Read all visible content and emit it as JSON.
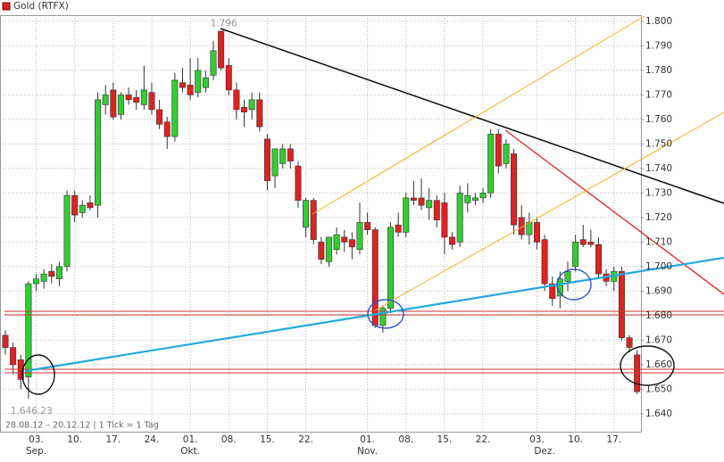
{
  "chart_data": {
    "type": "candlestick",
    "title": "Gold (RTFX)",
    "footer": "28.08.12 – 20.12.12 | 1 Tick = 1 Tag",
    "up_color": "#33cc33",
    "down_color": "#dd2222",
    "grid": true,
    "categories": [
      null,
      null,
      null,
      null,
      "03.",
      null,
      null,
      null,
      null,
      "10.",
      null,
      null,
      null,
      null,
      "17.",
      null,
      null,
      null,
      null,
      "24.",
      null,
      null,
      null,
      null,
      "01.",
      null,
      null,
      null,
      null,
      "08.",
      null,
      null,
      null,
      null,
      "15.",
      null,
      null,
      null,
      null,
      "22.",
      null,
      null,
      null,
      null,
      null,
      null,
      null,
      "01.",
      null,
      null,
      null,
      null,
      "08.",
      null,
      null,
      null,
      null,
      "15.",
      null,
      null,
      null,
      null,
      "22.",
      null,
      null,
      null,
      null,
      null,
      null,
      "03.",
      null,
      null,
      null,
      null,
      "10.",
      null,
      null,
      null,
      null,
      "17.",
      null,
      null,
      null
    ],
    "months": [
      null,
      null,
      null,
      null,
      "Sep.",
      null,
      null,
      null,
      null,
      null,
      null,
      null,
      null,
      null,
      null,
      null,
      null,
      null,
      null,
      null,
      null,
      null,
      null,
      null,
      "Okt.",
      null,
      null,
      null,
      null,
      null,
      null,
      null,
      null,
      null,
      null,
      null,
      null,
      null,
      null,
      null,
      null,
      null,
      null,
      null,
      null,
      null,
      null,
      "Nov.",
      null,
      null,
      null,
      null,
      null,
      null,
      null,
      null,
      null,
      null,
      null,
      null,
      null,
      null,
      null,
      null,
      null,
      null,
      null,
      null,
      null,
      null,
      "Dez.",
      null,
      null,
      null,
      null,
      null,
      null,
      null,
      null,
      null,
      null,
      null,
      null,
      null
    ],
    "open": [
      1.672,
      1.667,
      1.662,
      1.655,
      1.693,
      1.694,
      1.698,
      1.695,
      1.7,
      1.729,
      1.722,
      1.726,
      1.725,
      1.766,
      1.772,
      1.762,
      1.77,
      1.769,
      1.766,
      1.771,
      1.764,
      1.759,
      1.753,
      1.775,
      1.774,
      1.771,
      1.773,
      1.778,
      1.796,
      1.782,
      1.772,
      1.765,
      1.764,
      1.768,
      1.752,
      1.737,
      1.742,
      1.748,
      1.741,
      1.716,
      1.727,
      1.71,
      1.702,
      1.707,
      1.712,
      1.711,
      1.707,
      1.718,
      1.715,
      1.676,
      1.683,
      1.717,
      1.714,
      1.728,
      1.728,
      1.724,
      1.727,
      1.726,
      1.712,
      1.71,
      1.726,
      1.727,
      1.728,
      1.73,
      1.754,
      1.742,
      1.746,
      1.72,
      1.713,
      1.718,
      1.711,
      1.693,
      1.688,
      1.694,
      1.7,
      1.711,
      1.71,
      1.709,
      1.697,
      1.694,
      1.698,
      1.671,
      1.664
    ],
    "high": [
      1.674,
      1.669,
      1.664,
      1.694,
      1.697,
      1.699,
      1.701,
      1.702,
      1.731,
      1.731,
      1.727,
      1.729,
      1.771,
      1.774,
      1.775,
      1.771,
      1.773,
      1.772,
      1.782,
      1.775,
      1.768,
      1.761,
      1.779,
      1.781,
      1.785,
      1.785,
      1.78,
      1.792,
      1.7962,
      1.785,
      1.775,
      1.768,
      1.771,
      1.771,
      1.754,
      1.748,
      1.75,
      1.75,
      1.743,
      1.728,
      1.728,
      1.712,
      1.712,
      1.716,
      1.715,
      1.714,
      1.726,
      1.722,
      1.716,
      1.684,
      1.718,
      1.722,
      1.73,
      1.735,
      1.736,
      1.732,
      1.729,
      1.73,
      1.714,
      1.733,
      1.734,
      1.73,
      1.732,
      1.756,
      1.756,
      1.752,
      1.748,
      1.725,
      1.722,
      1.72,
      1.713,
      1.696,
      1.698,
      1.702,
      1.713,
      1.717,
      1.715,
      1.712,
      1.699,
      1.7,
      1.7,
      1.672,
      1.666
    ],
    "low": [
      1.664,
      1.656,
      1.65,
      1.6462,
      1.69,
      1.691,
      1.693,
      1.692,
      1.698,
      1.718,
      1.72,
      1.723,
      1.72,
      1.762,
      1.76,
      1.76,
      1.766,
      1.764,
      1.764,
      1.762,
      1.756,
      1.748,
      1.751,
      1.771,
      1.768,
      1.769,
      1.771,
      1.776,
      1.78,
      1.77,
      1.76,
      1.757,
      1.76,
      1.755,
      1.731,
      1.732,
      1.74,
      1.74,
      1.724,
      1.712,
      1.709,
      1.701,
      1.7,
      1.705,
      1.706,
      1.703,
      1.705,
      1.713,
      1.675,
      1.673,
      1.681,
      1.712,
      1.712,
      1.725,
      1.723,
      1.719,
      1.716,
      1.705,
      1.707,
      1.708,
      1.722,
      1.725,
      1.726,
      1.728,
      1.738,
      1.74,
      1.713,
      1.711,
      1.709,
      1.707,
      1.69,
      1.684,
      1.683,
      1.69,
      1.698,
      1.708,
      1.708,
      1.695,
      1.692,
      1.69,
      1.67,
      1.665,
      1.648
    ],
    "close": [
      1.667,
      1.66,
      1.654,
      1.693,
      1.695,
      1.697,
      1.696,
      1.7,
      1.729,
      1.721,
      1.725,
      1.724,
      1.768,
      1.77,
      1.761,
      1.77,
      1.768,
      1.767,
      1.772,
      1.764,
      1.758,
      1.753,
      1.776,
      1.773,
      1.77,
      1.78,
      1.777,
      1.788,
      1.781,
      1.772,
      1.764,
      1.763,
      1.768,
      1.757,
      1.735,
      1.748,
      1.748,
      1.743,
      1.727,
      1.727,
      1.711,
      1.703,
      1.712,
      1.713,
      1.71,
      1.708,
      1.718,
      1.715,
      1.676,
      1.683,
      1.716,
      1.714,
      1.728,
      1.727,
      1.725,
      1.727,
      1.719,
      1.712,
      1.709,
      1.73,
      1.729,
      1.728,
      1.73,
      1.754,
      1.741,
      1.75,
      1.717,
      1.713,
      1.718,
      1.71,
      1.693,
      1.687,
      1.695,
      1.698,
      1.71,
      1.709,
      1.709,
      1.697,
      1.694,
      1.698,
      1.671,
      1.667,
      1.649
    ],
    "ylim": [
      1.6327,
      1.8025
    ],
    "yticks": [
      {
        "value": 1.64,
        "label": "1.640"
      },
      {
        "value": 1.65,
        "label": "1.650"
      },
      {
        "value": 1.66,
        "label": "1.660"
      },
      {
        "value": 1.67,
        "label": "1.670"
      },
      {
        "value": 1.68,
        "label": "1.680"
      },
      {
        "value": 1.69,
        "label": "1.690"
      },
      {
        "value": 1.7,
        "label": "1.700"
      },
      {
        "value": 1.71,
        "label": "1.710"
      },
      {
        "value": 1.72,
        "label": "1.720"
      },
      {
        "value": 1.73,
        "label": "1.730"
      },
      {
        "value": 1.74,
        "label": "1.740"
      },
      {
        "value": 1.75,
        "label": "1.750"
      },
      {
        "value": 1.76,
        "label": "1.760"
      },
      {
        "value": 1.77,
        "label": "1.770"
      },
      {
        "value": 1.78,
        "label": "1.780"
      },
      {
        "value": 1.79,
        "label": "1.790"
      },
      {
        "value": 1.8,
        "label": "1.800"
      }
    ],
    "annotations": [
      {
        "text": "1.796",
        "index": 28
      },
      {
        "text": "1.646.23",
        "index": 3
      }
    ]
  }
}
